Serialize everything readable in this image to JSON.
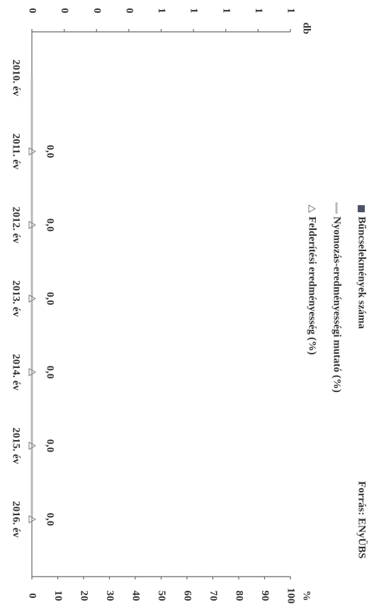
{
  "chart_data": {
    "type": "bar",
    "source": "Forrás: ENyÜBS",
    "y_label": "db",
    "y2_label": "%",
    "categories": [
      "2010. év",
      "2011. év",
      "2012. év",
      "2013. év",
      "2014. év",
      "2015. év",
      "2016. év"
    ],
    "ylim": [
      0,
      1
    ],
    "yticks": [
      0,
      {
        "value": 0.125,
        "label": "0"
      },
      {
        "value": 0.25,
        "label": "0"
      },
      {
        "value": 0.375,
        "label": "0"
      },
      {
        "value": 0.5,
        "label": "1"
      },
      {
        "value": 0.625,
        "label": "1"
      },
      {
        "value": 0.75,
        "label": "1"
      },
      {
        "value": 0.875,
        "label": "1"
      },
      1
    ],
    "y2lim": [
      0,
      100
    ],
    "y2ticks": [
      0,
      10,
      20,
      30,
      40,
      50,
      60,
      70,
      80,
      90,
      100
    ],
    "series": [
      {
        "name": "Bűncselekmények száma",
        "type": "bar",
        "color": "#4d5266",
        "values": [
          0,
          0,
          0,
          0,
          0,
          0,
          0
        ]
      },
      {
        "name": "Nyomozás-eredményességi mutató (%)",
        "type": "line",
        "axis": "y2",
        "color": "#b8b8b8",
        "values": [
          0,
          0,
          0,
          0,
          0,
          0,
          0
        ]
      },
      {
        "name": "Felderítési eredményesség (%)",
        "type": "marker",
        "axis": "y2",
        "color": "#777777",
        "values": [
          null,
          0,
          0,
          0,
          0,
          0,
          0
        ],
        "value_labels": [
          null,
          "0,0",
          "0,0",
          "0,0",
          "0,0",
          "0,0",
          "0,0"
        ]
      }
    ]
  }
}
